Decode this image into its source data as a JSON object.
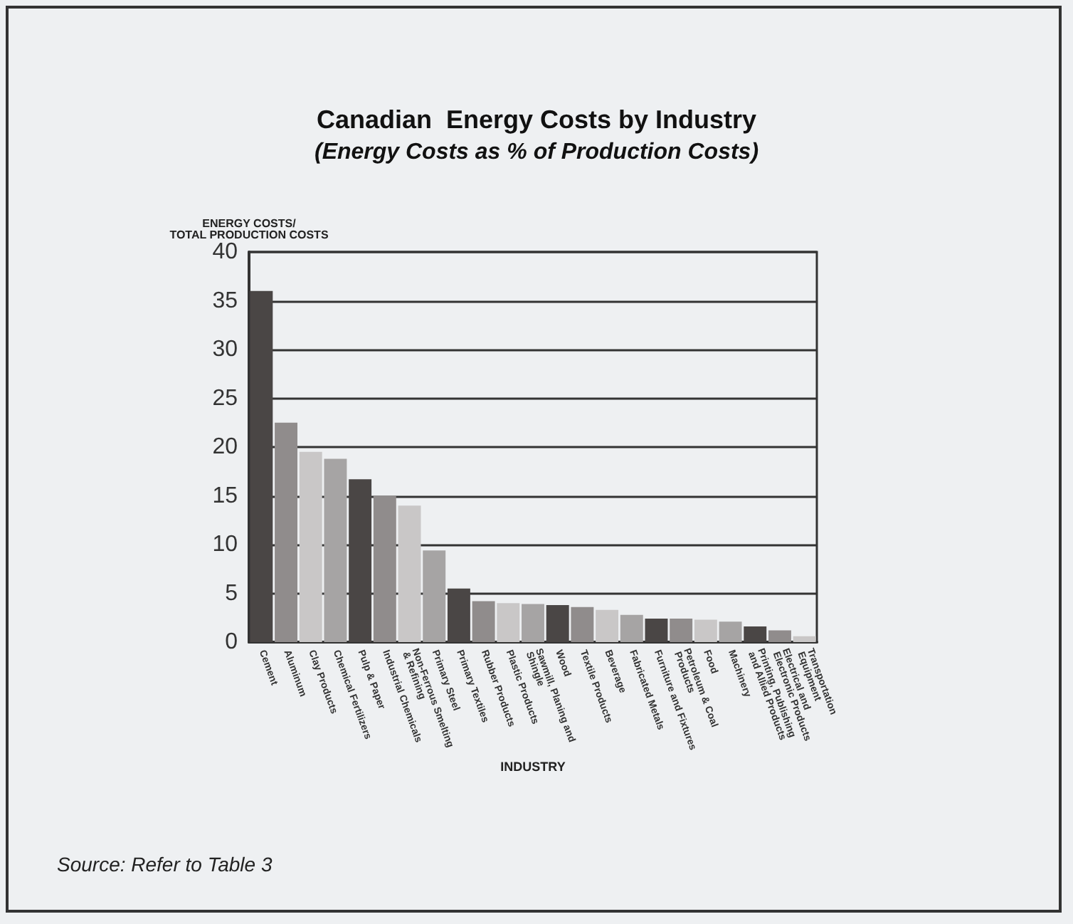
{
  "chart_data": {
    "type": "bar",
    "title": "Canadian  Energy Costs by Industry",
    "subtitle": "(Energy Costs as % of Production Costs)",
    "xlabel": "INDUSTRY",
    "ylabel": "ENERGY COSTS/\nTOTAL PRODUCTION COSTS",
    "categories": [
      "Cement",
      "Aluminum",
      "Clay Products",
      "Chemical Fertilizers",
      "Pulp & Paper",
      "Industrial Chemicals",
      "Non-Ferrous Smelting & Refining",
      "Primary Steel",
      "Primary Textiles",
      "Rubber Products",
      "Plastic Products",
      "Sawmill, Planing and Shingle",
      "Wood",
      "Textile Products",
      "Beverage",
      "Fabricated Metals",
      "Furniture and Fixtures",
      "Petroleum & Coal Products",
      "Food",
      "Machinery",
      "Printing, Publishing and Allied Products",
      "Electrical and Electronic Products",
      "Transportation Equipment"
    ],
    "values": [
      36,
      22.5,
      19.5,
      18.8,
      16.7,
      15,
      14,
      9.4,
      5.5,
      4.2,
      4,
      3.9,
      3.8,
      3.6,
      3.3,
      2.8,
      2.4,
      2.4,
      2.3,
      2.1,
      1.6,
      1.2,
      0.6
    ],
    "colors": [
      "#4a4645",
      "#908c8c",
      "#c9c7c7",
      "#a6a4a4",
      "#4a4645",
      "#908c8c",
      "#c9c7c7",
      "#a6a4a4",
      "#4a4645",
      "#908c8c",
      "#c9c7c7",
      "#a6a4a4",
      "#4a4645",
      "#908c8c",
      "#c9c7c7",
      "#a6a4a4",
      "#4a4645",
      "#908c8c",
      "#c9c7c7",
      "#a6a4a4",
      "#4a4645",
      "#908c8c",
      "#c9c7c7"
    ],
    "ylim": [
      0,
      40
    ],
    "yticks": [
      0,
      5,
      10,
      15,
      20,
      25,
      30,
      35,
      40
    ],
    "grid": "y",
    "annotations": [
      "Source: Refer to Table 3"
    ]
  }
}
